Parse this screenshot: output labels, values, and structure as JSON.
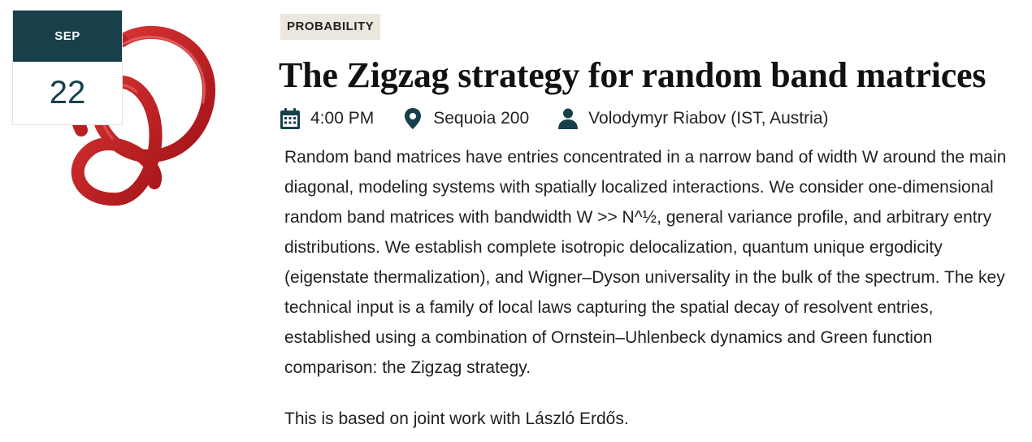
{
  "event": {
    "month": "SEP",
    "day": "22",
    "category": "PROBABILITY",
    "title": "The Zigzag strategy for random band matrices",
    "time": "4:00 PM",
    "location": "Sequoia 200",
    "speaker": "Volodymyr Riabov (IST, Austria)",
    "abstract_p1": "Random band matrices have entries concentrated in a narrow band of width W around the main diagonal, modeling systems with spatially localized interactions. We consider one-dimensional random band matrices with bandwidth W >> N^½, general variance profile, and arbitrary entry distributions. We establish complete isotropic delocalization, quantum unique ergodicity (eigenstate thermalization), and Wigner–Dyson universality in the bulk of the spectrum. The key technical input is a family of local laws capturing the spatial decay of resolvent entries, established using a combination of Ornstein–Uhlenbeck dynamics and Green function comparison: the Zigzag strategy.",
    "abstract_p2": "This is based on joint work with László Erdős."
  },
  "icons": {
    "time": "calendar-icon",
    "location": "map-pin-icon",
    "speaker": "person-icon",
    "art": "red-knot-illustration"
  },
  "colors": {
    "accent": "#17404a",
    "tag_background": "#ebe7df",
    "knot": "#c0151b"
  }
}
